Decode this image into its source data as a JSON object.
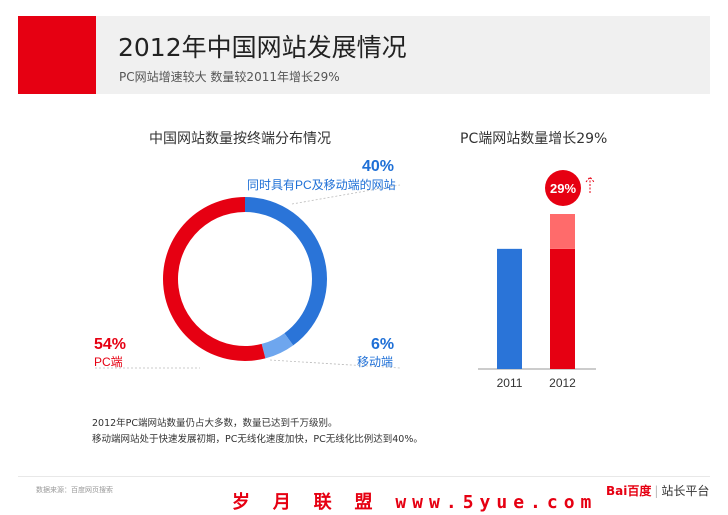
{
  "header": {
    "title": "2012年中国网站发展情况",
    "subtitle": "PC网站增速较大  数量较2011年增长29%"
  },
  "colors": {
    "red": "#e60012",
    "light_red": "#ff6b6b",
    "blue": "#2a74d8",
    "light_blue": "#6ea6ee"
  },
  "chart_data": [
    {
      "type": "pie",
      "title": "中国网站数量按终端分布情况",
      "donut": true,
      "slices": [
        {
          "label": "同时具有PC及移动端的网站",
          "value": 40,
          "display": "40%",
          "color": "#2a74d8"
        },
        {
          "label": "移动端",
          "value": 6,
          "display": "6%",
          "color": "#6ea6ee"
        },
        {
          "label": "PC端",
          "value": 54,
          "display": "54%",
          "color": "#e60012"
        }
      ]
    },
    {
      "type": "bar",
      "title": "PC端网站数量增长29%",
      "categories": [
        "2011",
        "2012"
      ],
      "values": [
        100,
        129
      ],
      "growth_label": "29%",
      "colors": [
        "#2a74d8",
        "#e60012"
      ],
      "increment_color": "#ff6b6b"
    }
  ],
  "notes": [
    "2012年PC端网站数量仍占大多数，数量已达到千万级别。",
    "移动端网站处于快速发展初期，PC无线化速度加快，PC无线化比例达到40%。"
  ],
  "source": "数据来源：百度网页搜索",
  "watermark": "岁 月 联 盟  www.5yue.com",
  "brand": {
    "logo": "Bai百度",
    "sep": "|",
    "platform": "站长平台"
  }
}
